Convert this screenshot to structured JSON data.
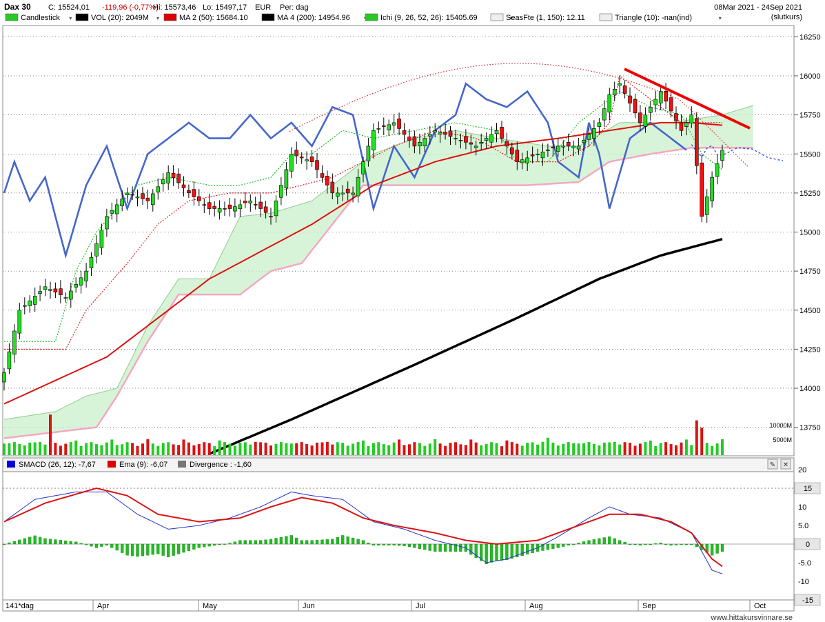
{
  "header": {
    "symbol": "Dax 30",
    "close": "C: 15524,01",
    "change": "-119,96 (-0,77%)",
    "high": "Hi: 15573,46",
    "low": "Lo: 15497,17",
    "currency": "EUR",
    "period": "Per: dag",
    "date_range": "08Mar 2021 - 24Sep 2021",
    "price_mode": "(slutkurs)"
  },
  "legend_top": [
    {
      "label": "Candlestick",
      "color": "#22cc22"
    },
    {
      "label": "VOL (20): 2049M",
      "color": "#000000"
    },
    {
      "label": "MA 2 (50): 15684.10",
      "color": "#dd0000"
    },
    {
      "label": "MA 4 (200): 14954.96",
      "color": "#000000"
    },
    {
      "label": "Ichi (9, 26, 52, 26): 15405.69",
      "color": "#22cc22"
    },
    {
      "label": "SeasFte (1, 150): 12.11",
      "color": "#eeeeee"
    },
    {
      "label": "Triangle (10): -nan(ind)",
      "color": "#eeeeee"
    }
  ],
  "legend_bottom": [
    {
      "label": "SMACD (26, 12): -7,67",
      "color": "#0000dd"
    },
    {
      "label": "Ema (9): -6,07",
      "color": "#dd0000"
    },
    {
      "label": "Divergence : -1,60",
      "color": "#777777"
    }
  ],
  "footer": {
    "bars_label": "141*dag",
    "months": [
      "Apr",
      "May",
      "Jun",
      "Jul",
      "Aug",
      "Sep",
      "Oct"
    ],
    "watermark": "www.hittakursvinnare.se"
  },
  "chart_data": {
    "type": "candlestick",
    "price_axis": {
      "ticks": [
        13750,
        14000,
        14250,
        14500,
        14750,
        15000,
        15250,
        15500,
        15750,
        16000,
        16250
      ],
      "tick_labels": [
        "13750",
        "14000",
        "14250",
        "14500",
        "14750",
        "15000",
        "15250",
        "15500",
        "15750",
        "16000",
        "16250"
      ]
    },
    "volume_axis": {
      "tick_labels": [
        "10000M",
        "5000M"
      ]
    },
    "macd_axis": {
      "ticks": [
        20,
        10,
        5,
        -5,
        -10
      ],
      "tick_labels": [
        "20",
        "10",
        "5.0",
        "-5.0",
        "-10"
      ],
      "badges": [
        15,
        0,
        -15
      ],
      "badge_labels": [
        "15",
        "0",
        "-15"
      ]
    },
    "last": {
      "close": 15524.01,
      "high": 15573.46,
      "low": 15497.17
    },
    "ma50_last": 15684.1,
    "ma200_last": 14954.96,
    "smacd_last": -7.67,
    "ema9_last": -6.07,
    "divergence_last": -1.6
  }
}
